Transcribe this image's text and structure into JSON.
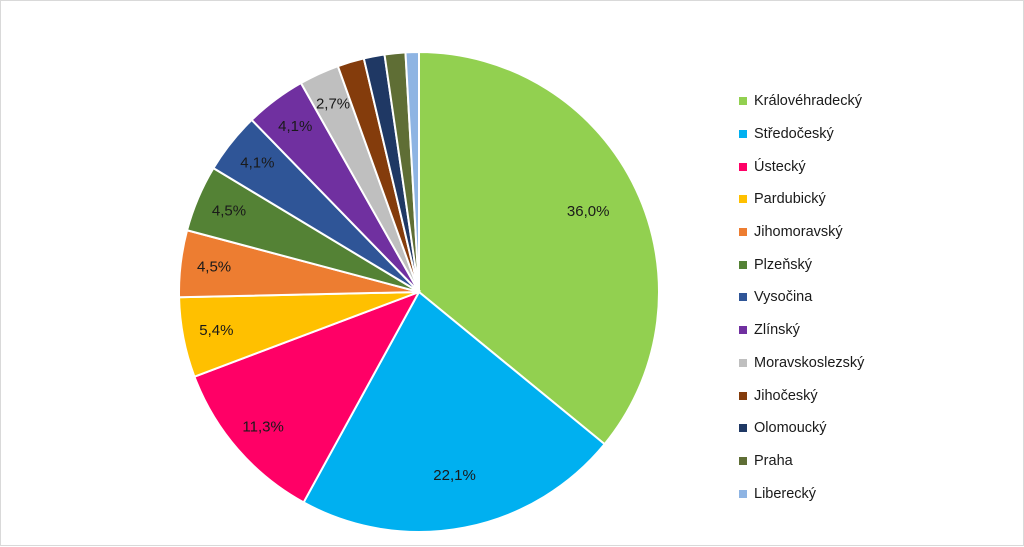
{
  "chart_data": {
    "type": "pie",
    "title": "",
    "slices": [
      {
        "name": "Královéhradecký",
        "value": 36.0,
        "label": "36,0%",
        "color": "#92d050"
      },
      {
        "name": "Středočeský",
        "value": 22.1,
        "label": "22,1%",
        "color": "#00b0f0"
      },
      {
        "name": "Ústecký",
        "value": 11.3,
        "label": "11,3%",
        "color": "#ff0066"
      },
      {
        "name": "Pardubický",
        "value": 5.4,
        "label": "5,4%",
        "color": "#ffc000"
      },
      {
        "name": "Jihomoravský",
        "value": 4.5,
        "label": "4,5%",
        "color": "#ed7d31"
      },
      {
        "name": "Plzeňský",
        "value": 4.5,
        "label": "4,5%",
        "color": "#548235"
      },
      {
        "name": "Vysočina",
        "value": 4.1,
        "label": "4,1%",
        "color": "#2f5597"
      },
      {
        "name": "Zlínský",
        "value": 4.1,
        "label": "4,1%",
        "color": "#7030a0"
      },
      {
        "name": "Moravskoslezský",
        "value": 2.7,
        "label": "2,7%",
        "color": "#bfbfbf"
      },
      {
        "name": "Jihočeský",
        "value": 1.8,
        "label": "",
        "color": "#843c0c"
      },
      {
        "name": "Olomoucký",
        "value": 1.4,
        "label": "",
        "color": "#1f3864"
      },
      {
        "name": "Praha",
        "value": 1.4,
        "label": "",
        "color": "#5f6e35"
      },
      {
        "name": "Liberecký",
        "value": 0.9,
        "label": "",
        "color": "#8eb4e3"
      }
    ],
    "legend_position": "right"
  }
}
